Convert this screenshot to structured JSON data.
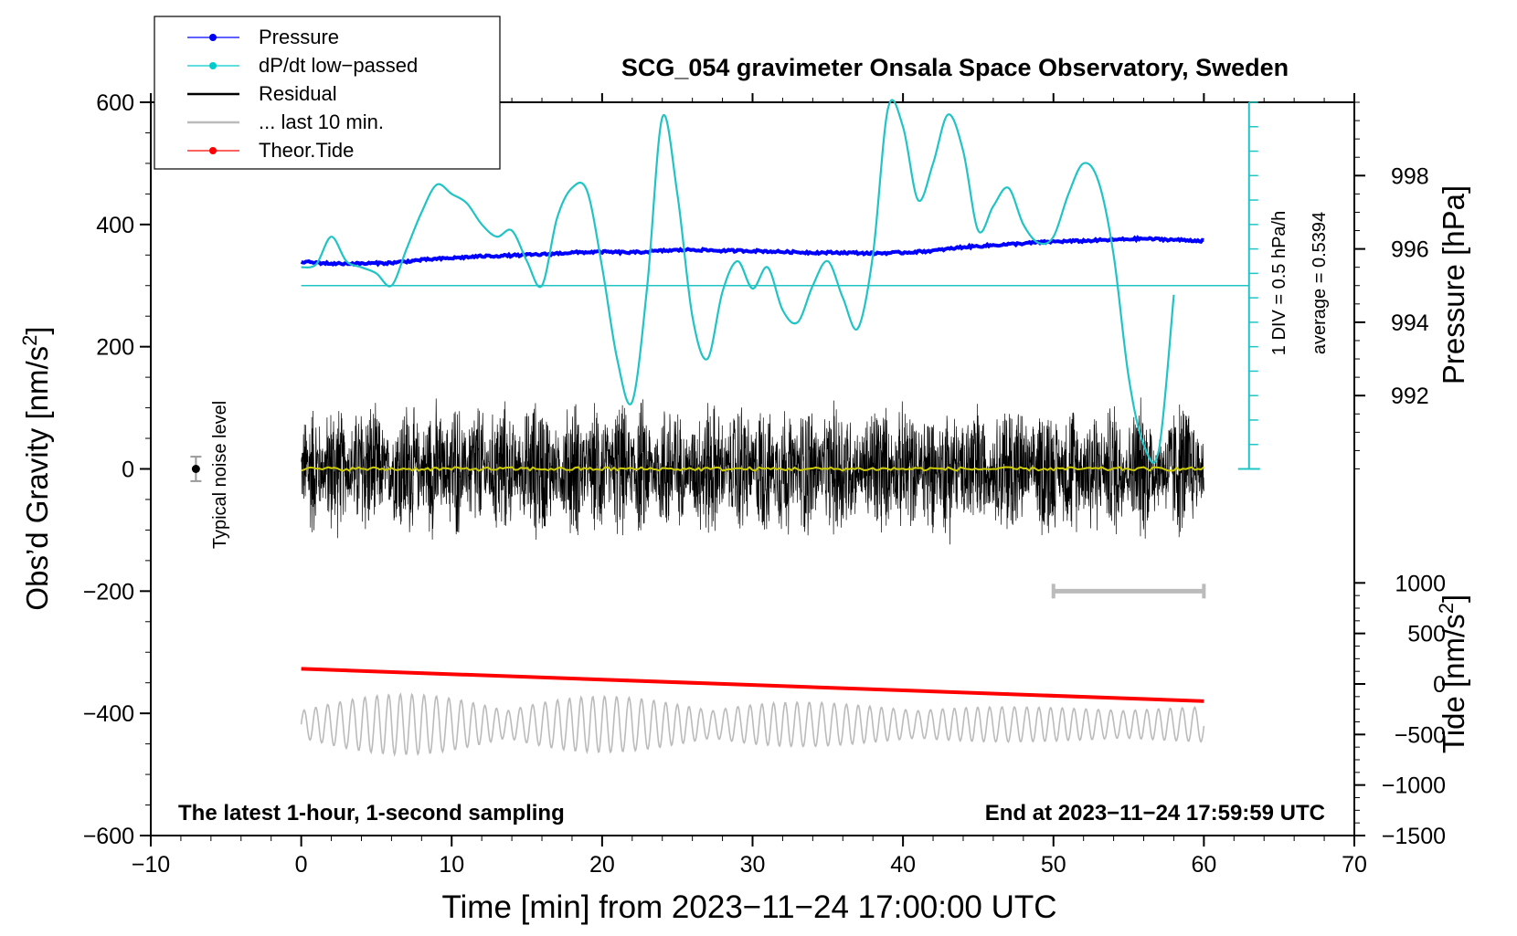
{
  "chart_data": {
    "type": "line",
    "title": "SCG_054 gravimeter Onsala Space Observatory, Sweden",
    "xlabel": "Time [min] from 2023−11−24 17:00:00 UTC",
    "ylabel_left_main": "Obs’d Gravity [nm/s",
    "ylabel_left_sup": "2",
    "ylabel_left_close": "]",
    "ylabel_right_pressure": "Pressure [hPa]",
    "ylabel_right_tide_main": "Tide [nm/s",
    "ylabel_right_tide_sup": "2",
    "ylabel_right_tide_close": "]",
    "xlim": [
      -10,
      70
    ],
    "ylim_left": [
      -600,
      600
    ],
    "ylim_pressure": [
      990,
      1000
    ],
    "ylim_tide": [
      -1500,
      1500
    ],
    "x_ticks": [
      -10,
      0,
      10,
      20,
      30,
      40,
      50,
      60,
      70
    ],
    "x_tick_labels": [
      "−10",
      "0",
      "10",
      "20",
      "30",
      "40",
      "50",
      "60",
      "70"
    ],
    "y_ticks_left": [
      600,
      400,
      200,
      0,
      -200,
      -400,
      -600
    ],
    "y_tick_labels_left": [
      "600",
      "400",
      "200",
      "0",
      "−200",
      "−400",
      "−600"
    ],
    "pressure_ticks": [
      998,
      996,
      994,
      992
    ],
    "pressure_tick_labels": [
      "998",
      "996",
      "994",
      "992"
    ],
    "tide_ticks": [
      1000,
      500,
      0,
      -500,
      -1000,
      -1500
    ],
    "tide_tick_labels": [
      "1000",
      "500",
      "0",
      "−500",
      "−1000",
      "−1500"
    ],
    "legend": {
      "position": "top-left",
      "entries": [
        {
          "label": "Pressure",
          "color": "#0000ff",
          "marker": "dot"
        },
        {
          "label": "dP/dt low−passed",
          "color": "#00cccc",
          "marker": "dot"
        },
        {
          "label": "Residual",
          "color": "#000000",
          "marker": "none"
        },
        {
          "label": "... last 10 min.",
          "color": "#bbbbbb",
          "marker": "none"
        },
        {
          "label": "Theor.Tide",
          "color": "#ff0000",
          "marker": "dot"
        }
      ]
    },
    "annotations": {
      "bottom_left": "The latest 1-hour, 1-second sampling",
      "bottom_right": "End at 2023−11−24 17:59:59 UTC",
      "noise_label": "Typical noise level",
      "noise_point": {
        "x": -7,
        "y": 0,
        "err": 20
      },
      "dpdt_scale": "1 DIV = 0.5 hPa/h",
      "dpdt_average": "average = 0.5394",
      "last10_marker": {
        "x_start": 50,
        "x_end": 60,
        "y": -200
      }
    },
    "dpdt_scale_axis": {
      "x": 63,
      "y_bottom": 0,
      "y_top": 600,
      "div": 40
    },
    "dpdt_baseline_y": 300,
    "series": [
      {
        "name": "Pressure",
        "axis": "pressure",
        "color": "#0000ff",
        "x": [
          0,
          2,
          4,
          6,
          8,
          10,
          12,
          14,
          16,
          18,
          20,
          22,
          24,
          26,
          28,
          30,
          32,
          34,
          36,
          38,
          40,
          42,
          44,
          46,
          48,
          50,
          52,
          54,
          56,
          58,
          60
        ],
        "y": [
          995.65,
          995.6,
          995.6,
          995.62,
          995.7,
          995.75,
          995.8,
          995.82,
          995.85,
          995.9,
          995.92,
          995.9,
          995.95,
          995.98,
          995.95,
          995.95,
          995.92,
          995.9,
          995.9,
          995.88,
          995.9,
          995.95,
          996.05,
          996.1,
          996.15,
          996.2,
          996.22,
          996.25,
          996.28,
          996.25,
          996.22
        ]
      },
      {
        "name": "dP/dt low−passed",
        "axis": "left",
        "color": "#20c4c4",
        "x": [
          0,
          1,
          2,
          3,
          4,
          5,
          6,
          7,
          8,
          9,
          10,
          11,
          12,
          13,
          14,
          15,
          16,
          17,
          18,
          19,
          20,
          21,
          22,
          23,
          24,
          25,
          26,
          27,
          28,
          29,
          30,
          31,
          32,
          33,
          34,
          35,
          36,
          37,
          38,
          39,
          40,
          41,
          42,
          43,
          44,
          45,
          46,
          47,
          48,
          49,
          50,
          51,
          52,
          53,
          54,
          55,
          56,
          57,
          58
        ],
        "y": [
          330,
          335,
          380,
          340,
          330,
          320,
          300,
          360,
          420,
          465,
          450,
          435,
          400,
          380,
          390,
          340,
          300,
          410,
          460,
          455,
          330,
          180,
          110,
          300,
          575,
          450,
          250,
          180,
          290,
          340,
          295,
          330,
          260,
          240,
          300,
          340,
          280,
          230,
          350,
          590,
          560,
          440,
          500,
          580,
          520,
          390,
          430,
          460,
          400,
          370,
          380,
          450,
          500,
          470,
          350,
          150,
          40,
          30,
          285
        ]
      },
      {
        "name": "Theor.Tide",
        "axis": "tide",
        "color": "#ff0000",
        "x": [
          0,
          60
        ],
        "y": [
          150,
          -170
        ]
      }
    ],
    "residual": {
      "name": "Residual",
      "color": "#000000",
      "x_range": [
        0,
        60
      ],
      "approx_amplitude_nm_s2": 130,
      "mean_line_color": "#cccc00"
    },
    "last10": {
      "name": "... last 10 min.",
      "color": "#bbbbbb",
      "x_range": [
        0,
        60
      ],
      "center_tide_units": -400,
      "approx_amplitude_tide_units": 300
    }
  }
}
